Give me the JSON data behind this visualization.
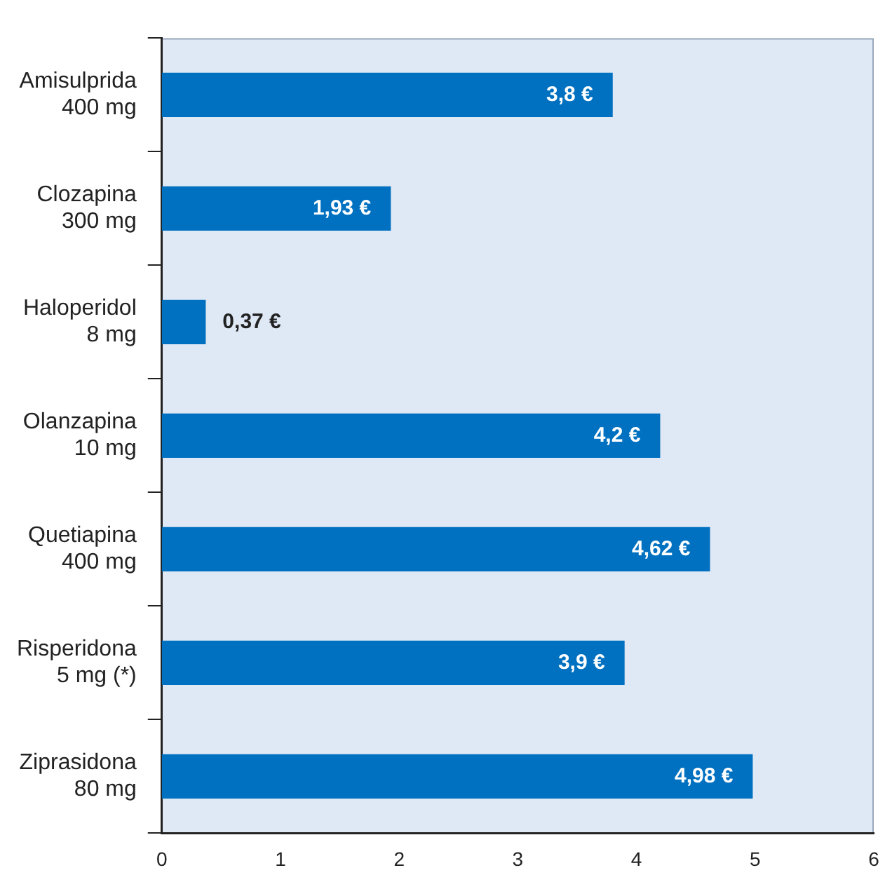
{
  "chart_data": {
    "type": "bar",
    "orientation": "horizontal",
    "categories": [
      "Amisulprida\n400 mg",
      "Clozapina\n300 mg",
      "Haloperidol\n8 mg",
      "Olanzapina\n10 mg",
      "Quetiapina\n400 mg",
      "Risperidona\n5 mg (*)",
      "Ziprasidona\n80 mg"
    ],
    "values": [
      3.8,
      1.93,
      0.37,
      4.2,
      4.62,
      3.9,
      4.98
    ],
    "value_labels": [
      "3,8 €",
      "1,93 €",
      "0,37 €",
      "4,2 €",
      "4,62 €",
      "3,9 €",
      "4,98 €"
    ],
    "color": "#0070c0",
    "xlim": [
      0,
      6
    ],
    "xticks": [
      0,
      1,
      2,
      3,
      4,
      5,
      6
    ],
    "grid": false,
    "legend": false
  }
}
